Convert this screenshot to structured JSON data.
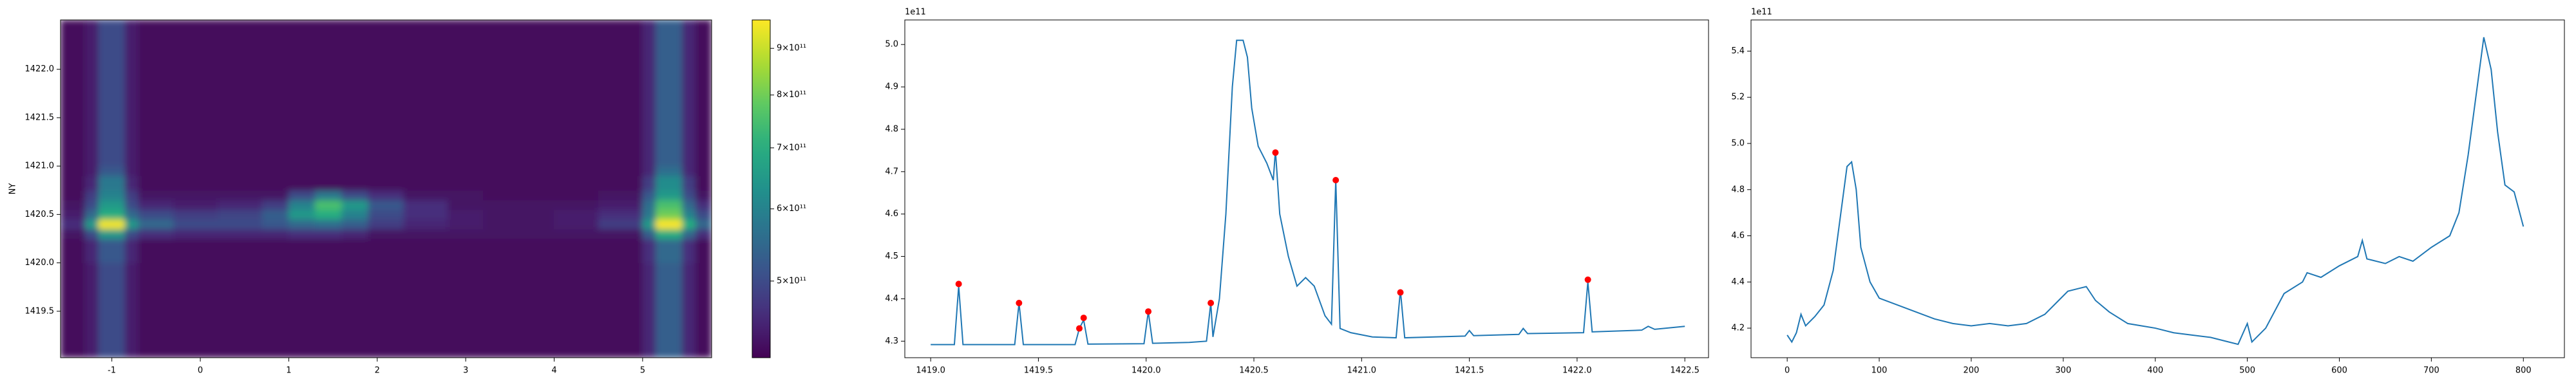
{
  "chart_data": [
    {
      "type": "heatmap",
      "ylabel": "NY",
      "cmap": "viridis",
      "norm": "log",
      "xlim": [
        -1.58,
        5.78
      ],
      "ylim": [
        1419.02,
        1422.51
      ],
      "xticks": [
        -1,
        0,
        1,
        2,
        3,
        4,
        5
      ],
      "yticks": [
        1419.5,
        {
          "value": 1420,
          "label": "1420.0"
        },
        1420.5,
        {
          "value": 1421,
          "label": "1421.0"
        },
        1421.5,
        {
          "value": 1422,
          "label": "1422.0"
        }
      ],
      "x_edges": [
        -1.58,
        -1.3,
        -1.15,
        -0.85,
        -0.7,
        -0.3,
        0.2,
        0.7,
        1.0,
        1.3,
        1.6,
        1.9,
        2.3,
        2.8,
        3.2,
        3.6,
        4.0,
        4.5,
        5.0,
        5.15,
        5.45,
        5.6,
        5.78
      ],
      "y_edges": [
        1419.02,
        1419.5,
        1420.0,
        1420.25,
        1420.35,
        1420.45,
        1420.55,
        1420.65,
        1420.75,
        1420.9,
        1421.0,
        1421.5,
        1422.0,
        1422.51
      ],
      "z": [
        [
          420000000000.0,
          440000000000.0,
          500000000000.0,
          440000000000.0,
          420000000000.0,
          420000000000.0,
          420000000000.0,
          420000000000.0,
          420000000000.0,
          420000000000.0,
          420000000000.0,
          420000000000.0,
          420000000000.0,
          420000000000.0,
          420000000000.0,
          420000000000.0,
          420000000000.0,
          420000000000.0,
          450000000000.0,
          530000000000.0,
          450000000000.0,
          420000000000.0
        ],
        [
          420000000000.0,
          440000000000.0,
          500000000000.0,
          440000000000.0,
          420000000000.0,
          420000000000.0,
          420000000000.0,
          420000000000.0,
          420000000000.0,
          420000000000.0,
          420000000000.0,
          420000000000.0,
          420000000000.0,
          420000000000.0,
          420000000000.0,
          420000000000.0,
          420000000000.0,
          420000000000.0,
          450000000000.0,
          530000000000.0,
          450000000000.0,
          420000000000.0
        ],
        [
          420000000000.0,
          450000000000.0,
          520000000000.0,
          450000000000.0,
          420000000000.0,
          420000000000.0,
          420000000000.0,
          420000000000.0,
          420000000000.0,
          420000000000.0,
          420000000000.0,
          420000000000.0,
          420000000000.0,
          420000000000.0,
          420000000000.0,
          420000000000.0,
          420000000000.0,
          420000000000.0,
          460000000000.0,
          550000000000.0,
          460000000000.0,
          420000000000.0
        ],
        [
          430000000000.0,
          500000000000.0,
          650000000000.0,
          500000000000.0,
          460000000000.0,
          450000000000.0,
          450000000000.0,
          450000000000.0,
          460000000000.0,
          460000000000.0,
          450000000000.0,
          430000000000.0,
          430000000000.0,
          430000000000.0,
          430000000000.0,
          430000000000.0,
          430000000000.0,
          430000000000.0,
          530000000000.0,
          700000000000.0,
          550000000000.0,
          460000000000.0
        ],
        [
          460000000000.0,
          650000000000.0,
          950000000000.0,
          650000000000.0,
          550000000000.0,
          500000000000.0,
          500000000000.0,
          520000000000.0,
          550000000000.0,
          560000000000.0,
          530000000000.0,
          480000000000.0,
          450000000000.0,
          440000000000.0,
          430000000000.0,
          430000000000.0,
          440000000000.0,
          480000000000.0,
          650000000000.0,
          960000000000.0,
          700000000000.0,
          550000000000.0
        ],
        [
          440000000000.0,
          550000000000.0,
          700000000000.0,
          550000000000.0,
          500000000000.0,
          480000000000.0,
          490000000000.0,
          530000000000.0,
          650000000000.0,
          700000000000.0,
          600000000000.0,
          500000000000.0,
          460000000000.0,
          440000000000.0,
          430000000000.0,
          430000000000.0,
          440000000000.0,
          460000000000.0,
          580000000000.0,
          800000000000.0,
          600000000000.0,
          500000000000.0
        ],
        [
          430000000000.0,
          500000000000.0,
          650000000000.0,
          500000000000.0,
          450000000000.0,
          440000000000.0,
          450000000000.0,
          480000000000.0,
          600000000000.0,
          750000000000.0,
          650000000000.0,
          520000000000.0,
          460000000000.0,
          430000000000.0,
          430000000000.0,
          430000000000.0,
          430000000000.0,
          440000000000.0,
          560000000000.0,
          750000000000.0,
          550000000000.0,
          460000000000.0
        ],
        [
          420000000000.0,
          480000000000.0,
          600000000000.0,
          480000000000.0,
          430000000000.0,
          430000000000.0,
          430000000000.0,
          430000000000.0,
          500000000000.0,
          580000000000.0,
          500000000000.0,
          460000000000.0,
          430000000000.0,
          430000000000.0,
          420000000000.0,
          420000000000.0,
          420000000000.0,
          430000000000.0,
          520000000000.0,
          650000000000.0,
          500000000000.0,
          430000000000.0
        ],
        [
          420000000000.0,
          450000000000.0,
          580000000000.0,
          450000000000.0,
          420000000000.0,
          420000000000.0,
          420000000000.0,
          420000000000.0,
          420000000000.0,
          420000000000.0,
          420000000000.0,
          420000000000.0,
          420000000000.0,
          420000000000.0,
          420000000000.0,
          420000000000.0,
          420000000000.0,
          420000000000.0,
          480000000000.0,
          620000000000.0,
          480000000000.0,
          420000000000.0
        ],
        [
          420000000000.0,
          440000000000.0,
          520000000000.0,
          440000000000.0,
          420000000000.0,
          420000000000.0,
          420000000000.0,
          420000000000.0,
          420000000000.0,
          420000000000.0,
          420000000000.0,
          420000000000.0,
          420000000000.0,
          420000000000.0,
          420000000000.0,
          420000000000.0,
          420000000000.0,
          420000000000.0,
          450000000000.0,
          560000000000.0,
          450000000000.0,
          420000000000.0
        ],
        [
          420000000000.0,
          440000000000.0,
          500000000000.0,
          440000000000.0,
          420000000000.0,
          420000000000.0,
          420000000000.0,
          420000000000.0,
          420000000000.0,
          420000000000.0,
          420000000000.0,
          420000000000.0,
          420000000000.0,
          420000000000.0,
          420000000000.0,
          420000000000.0,
          420000000000.0,
          420000000000.0,
          450000000000.0,
          530000000000.0,
          450000000000.0,
          420000000000.0
        ],
        [
          420000000000.0,
          440000000000.0,
          500000000000.0,
          440000000000.0,
          420000000000.0,
          420000000000.0,
          420000000000.0,
          420000000000.0,
          420000000000.0,
          420000000000.0,
          420000000000.0,
          420000000000.0,
          420000000000.0,
          420000000000.0,
          420000000000.0,
          420000000000.0,
          420000000000.0,
          420000000000.0,
          450000000000.0,
          530000000000.0,
          450000000000.0,
          420000000000.0
        ],
        [
          420000000000.0,
          440000000000.0,
          500000000000.0,
          440000000000.0,
          420000000000.0,
          420000000000.0,
          420000000000.0,
          420000000000.0,
          420000000000.0,
          420000000000.0,
          420000000000.0,
          420000000000.0,
          420000000000.0,
          420000000000.0,
          420000000000.0,
          420000000000.0,
          420000000000.0,
          420000000000.0,
          450000000000.0,
          530000000000.0,
          450000000000.0,
          420000000000.0
        ]
      ],
      "clim": [
        412000000000.0,
        967000000000.0
      ],
      "cticks": [
        {
          "value": 500000000000.0,
          "label": "5×10¹¹"
        },
        {
          "value": 600000000000.0,
          "label": "6×10¹¹"
        },
        {
          "value": 700000000000.0,
          "label": "7×10¹¹"
        },
        {
          "value": 800000000000.0,
          "label": "8×10¹¹"
        },
        {
          "value": 900000000000.0,
          "label": "9×10¹¹"
        }
      ]
    },
    {
      "type": "line",
      "offset_text": "1e11",
      "color": "#1f77b4",
      "xlim": [
        1418.88,
        1422.61
      ],
      "ylim": [
        4.261,
        5.058
      ],
      "xticks": [
        {
          "value": 1419,
          "label": "1419.0"
        },
        1419.5,
        {
          "value": 1420,
          "label": "1420.0"
        },
        1420.5,
        {
          "value": 1421,
          "label": "1421.0"
        },
        1421.5,
        {
          "value": 1422,
          "label": "1422.0"
        },
        1422.5
      ],
      "yticks": [
        4.3,
        4.4,
        4.5,
        4.6,
        4.7,
        4.8,
        4.9,
        {
          "value": 5,
          "label": "5.0"
        }
      ],
      "x": [
        1419.0,
        1419.11,
        1419.13,
        1419.15,
        1419.39,
        1419.41,
        1419.43,
        1419.67,
        1419.69,
        1419.71,
        1419.73,
        1419.99,
        1420.01,
        1420.03,
        1420.2,
        1420.28,
        1420.3,
        1420.31,
        1420.34,
        1420.37,
        1420.4,
        1420.42,
        1420.45,
        1420.47,
        1420.49,
        1420.52,
        1420.56,
        1420.59,
        1420.6,
        1420.62,
        1420.66,
        1420.7,
        1420.74,
        1420.78,
        1420.83,
        1420.86,
        1420.88,
        1420.9,
        1420.95,
        1421.05,
        1421.16,
        1421.18,
        1421.2,
        1421.48,
        1421.5,
        1421.52,
        1421.73,
        1421.75,
        1421.77,
        1422.03,
        1422.05,
        1422.07,
        1422.3,
        1422.33,
        1422.36,
        1422.5
      ],
      "values": [
        4.292,
        4.292,
        4.43,
        4.292,
        4.292,
        4.39,
        4.292,
        4.292,
        4.33,
        4.35,
        4.293,
        4.294,
        4.37,
        4.295,
        4.297,
        4.3,
        4.39,
        4.31,
        4.4,
        4.6,
        4.9,
        5.01,
        5.01,
        4.97,
        4.85,
        4.76,
        4.72,
        4.68,
        4.75,
        4.6,
        4.5,
        4.43,
        4.45,
        4.43,
        4.36,
        4.34,
        4.68,
        4.33,
        4.32,
        4.31,
        4.308,
        4.42,
        4.308,
        4.312,
        4.325,
        4.313,
        4.316,
        4.33,
        4.318,
        4.32,
        4.44,
        4.322,
        4.326,
        4.335,
        4.328,
        4.335
      ],
      "markers": {
        "color": "red",
        "x": [
          1419.13,
          1419.41,
          1419.69,
          1419.71,
          1420.01,
          1420.3,
          1420.6,
          1420.88,
          1421.18,
          1422.05
        ],
        "values": [
          4.435,
          4.39,
          4.33,
          4.355,
          4.37,
          4.39,
          4.745,
          4.68,
          4.415,
          4.445
        ]
      }
    },
    {
      "type": "line",
      "offset_text": "1e11",
      "color": "#1f77b4",
      "xlim": [
        -39.3,
        844.6
      ],
      "ylim": [
        4.072,
        5.535
      ],
      "xticks": [
        0,
        100,
        200,
        300,
        400,
        500,
        600,
        700,
        800
      ],
      "yticks": [
        4.2,
        4.4,
        4.6,
        4.8,
        {
          "value": 5,
          "label": "5.0"
        },
        5.2,
        5.4
      ],
      "x": [
        0,
        5,
        10,
        15,
        20,
        30,
        40,
        50,
        60,
        65,
        70,
        75,
        80,
        90,
        100,
        120,
        140,
        160,
        180,
        200,
        220,
        240,
        260,
        280,
        295,
        305,
        315,
        325,
        335,
        350,
        370,
        400,
        420,
        440,
        460,
        480,
        490,
        500,
        505,
        520,
        540,
        560,
        565,
        580,
        600,
        620,
        625,
        630,
        650,
        665,
        680,
        700,
        720,
        730,
        740,
        750,
        757,
        765,
        772,
        780,
        790,
        800
      ],
      "values": [
        4.17,
        4.14,
        4.18,
        4.26,
        4.21,
        4.25,
        4.3,
        4.45,
        4.75,
        4.9,
        4.92,
        4.8,
        4.55,
        4.4,
        4.33,
        4.3,
        4.27,
        4.24,
        4.22,
        4.21,
        4.22,
        4.21,
        4.22,
        4.26,
        4.32,
        4.36,
        4.37,
        4.38,
        4.32,
        4.27,
        4.22,
        4.2,
        4.18,
        4.17,
        4.16,
        4.14,
        4.13,
        4.22,
        4.14,
        4.2,
        4.35,
        4.4,
        4.44,
        4.42,
        4.47,
        4.51,
        4.58,
        4.5,
        4.48,
        4.51,
        4.49,
        4.55,
        4.6,
        4.7,
        4.95,
        5.25,
        5.46,
        5.32,
        5.05,
        4.82,
        4.79,
        4.64
      ]
    }
  ]
}
